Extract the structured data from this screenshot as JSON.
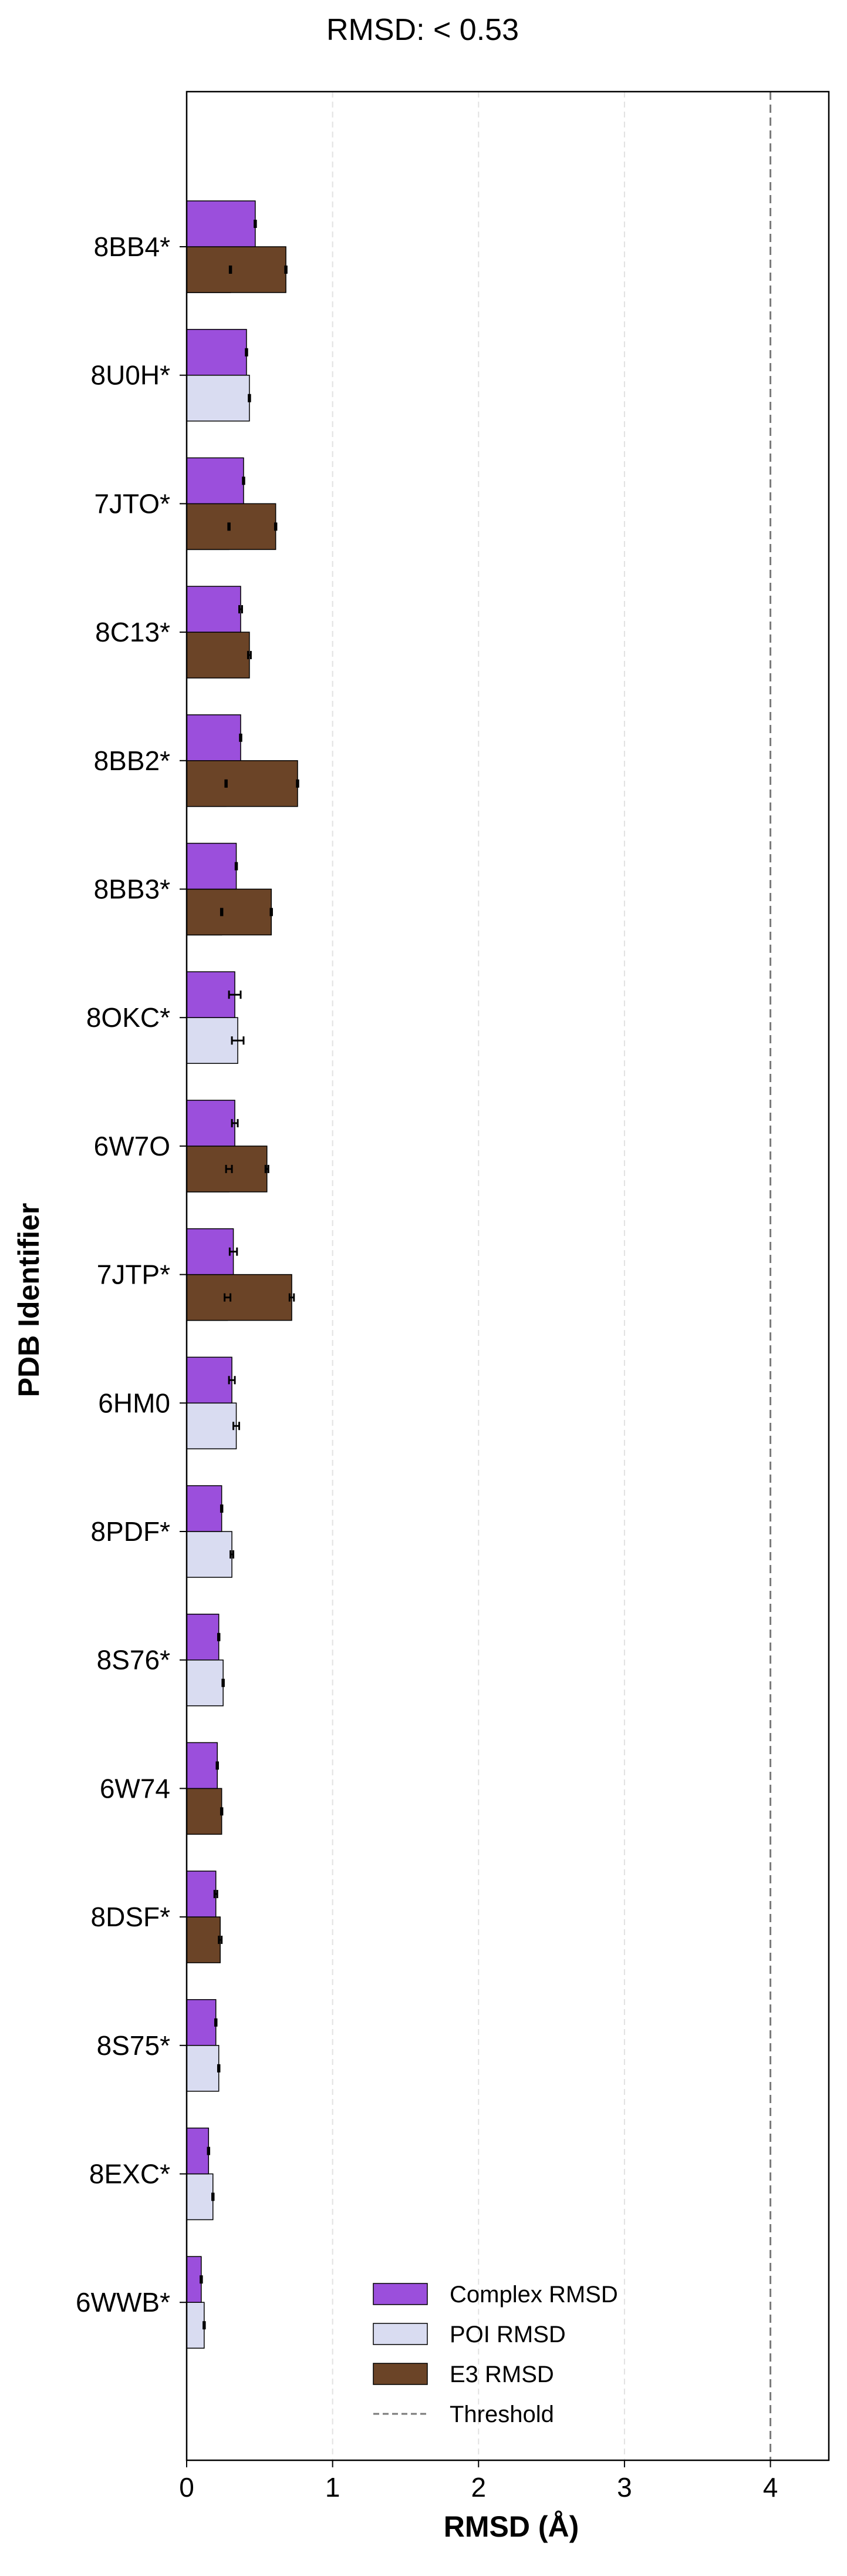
{
  "chart_data": {
    "type": "bar",
    "orientation": "horizontal",
    "title": "RMSD: < 0.53",
    "xlabel": "RMSD (Å)",
    "ylabel": "PDB Identifier",
    "xlim": [
      0,
      4.4
    ],
    "xticks": [
      0,
      1,
      2,
      3,
      4
    ],
    "x_grid": "dashed vertical at ticks",
    "threshold": 4.0,
    "legend_position": "lower-right",
    "legend": [
      {
        "label": "Complex RMSD",
        "kind": "patch",
        "color": "#9b4fdc"
      },
      {
        "label": "POI RMSD",
        "kind": "patch",
        "color": "#d9dcf1"
      },
      {
        "label": "E3 RMSD",
        "kind": "patch",
        "color": "#6b4427"
      },
      {
        "label": "Threshold",
        "kind": "line",
        "color": "#7a7a7a"
      }
    ],
    "colors": {
      "complex": "#9b4fdc",
      "poi": "#d9dcf1",
      "e3": "#6b4427",
      "threshold": "#7a7a7a"
    },
    "categories": [
      "8BB4*",
      "8U0H*",
      "7JTO*",
      "8C13*",
      "8BB2*",
      "8BB3*",
      "8OKC*",
      "6W7O",
      "7JTP*",
      "6HM0",
      "8PDF*",
      "8S76*",
      "6W74",
      "8DSF*",
      "8S75*",
      "8EXC*",
      "6WWB*"
    ],
    "series": [
      {
        "name": "Complex RMSD",
        "values": [
          0.47,
          0.41,
          0.39,
          0.37,
          0.37,
          0.34,
          0.33,
          0.33,
          0.32,
          0.31,
          0.24,
          0.22,
          0.21,
          0.2,
          0.2,
          0.15,
          0.1
        ],
        "errors": [
          0.005,
          0.005,
          0.005,
          0.01,
          0.005,
          0.005,
          0.04,
          0.02,
          0.025,
          0.02,
          0.005,
          0.005,
          0.005,
          0.01,
          0.005,
          0.005,
          0.005
        ]
      },
      {
        "name": "POI RMSD",
        "values": [
          0.3,
          0.43,
          0.29,
          null,
          0.27,
          0.24,
          0.35,
          0.29,
          0.28,
          0.34,
          0.31,
          0.25,
          null,
          null,
          0.22,
          0.18,
          0.12
        ],
        "errors": [
          0.005,
          0.005,
          0.005,
          null,
          0.005,
          0.005,
          0.04,
          0.02,
          0.02,
          0.02,
          0.01,
          0.005,
          null,
          null,
          0.005,
          0.005,
          0.005
        ]
      },
      {
        "name": "E3 RMSD",
        "values": [
          0.68,
          null,
          0.61,
          0.43,
          0.76,
          0.58,
          null,
          0.55,
          0.72,
          null,
          null,
          null,
          0.24,
          0.23,
          null,
          null,
          null
        ],
        "errors": [
          0.005,
          null,
          0.005,
          0.01,
          0.005,
          0.005,
          null,
          0.01,
          0.015,
          null,
          null,
          null,
          0.005,
          0.01,
          null,
          null,
          null
        ]
      }
    ]
  }
}
